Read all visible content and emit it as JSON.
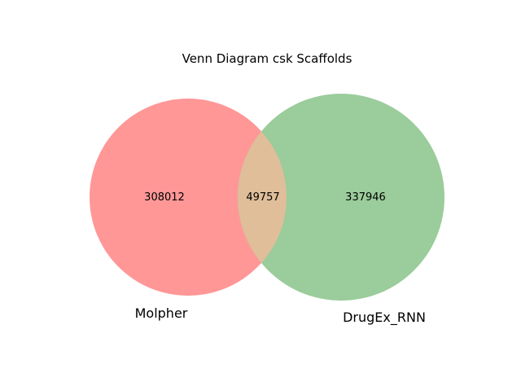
{
  "title": "Venn Diagram csk Scaffolds",
  "sets": [
    {
      "name": "Molpher",
      "color": "#ff9797"
    },
    {
      "name": "DrugEx_RNN",
      "color": "#9bcc9b"
    }
  ],
  "overlap_color": "#dfbe99",
  "regions": {
    "only_a": "308012",
    "intersection": "49757",
    "only_b": "337946"
  }
}
